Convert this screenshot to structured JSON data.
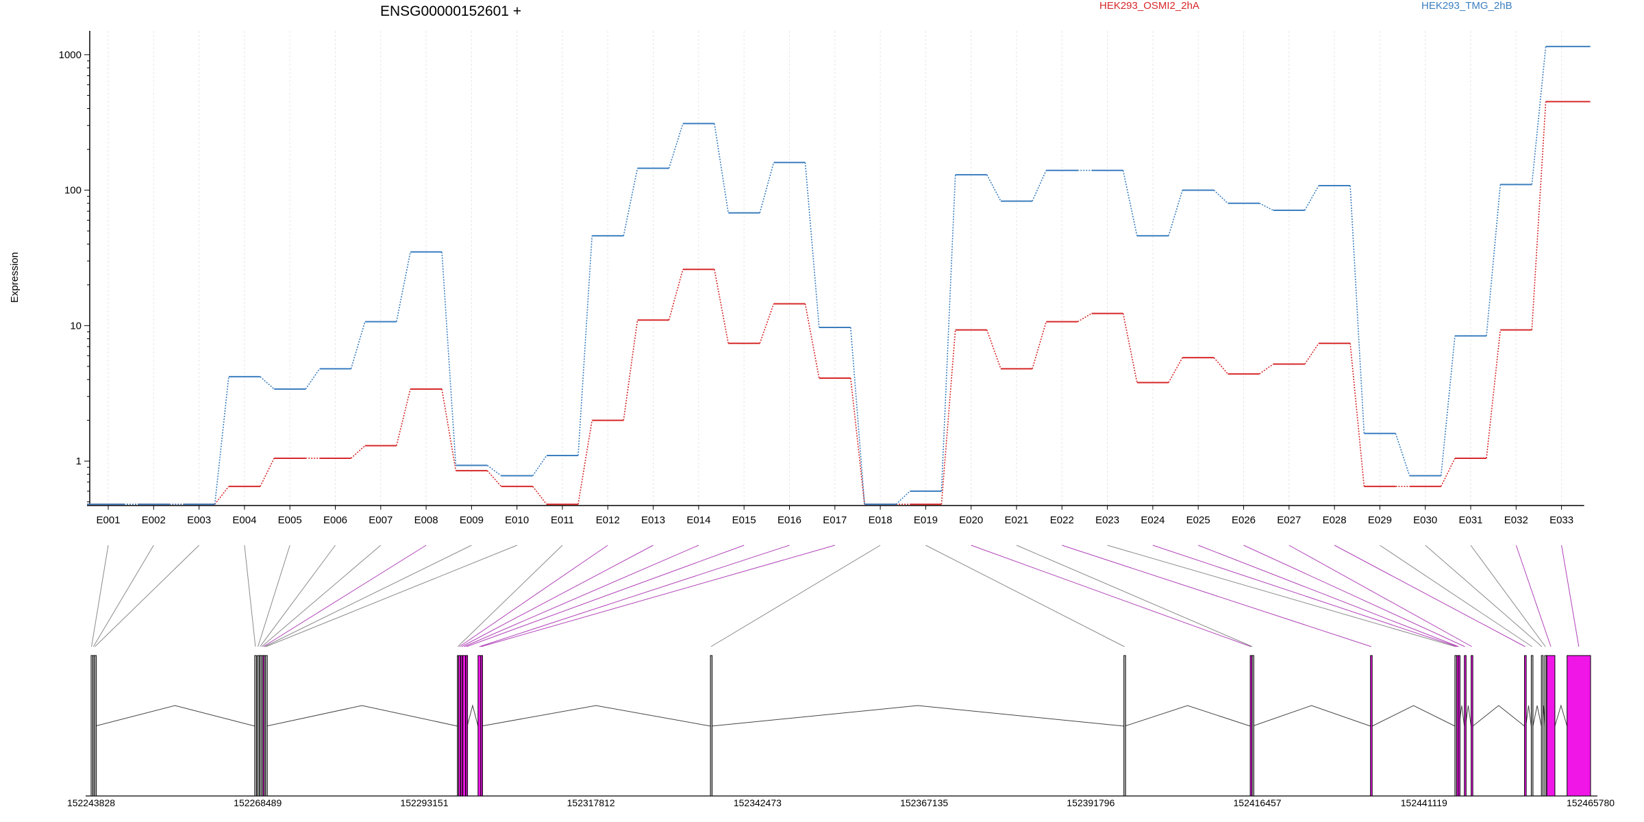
{
  "chart_data": {
    "type": "line",
    "title": "ENSG00000152601 +",
    "ylabel": "Expression",
    "yscale": "log",
    "yticks": [
      1,
      10,
      100,
      1000
    ],
    "yrange": [
      0.47,
      1500
    ],
    "legend_placement": "top",
    "categories": [
      "E001",
      "E002",
      "E003",
      "E004",
      "E005",
      "E006",
      "E007",
      "E008",
      "E009",
      "E010",
      "E011",
      "E012",
      "E013",
      "E014",
      "E015",
      "E016",
      "E017",
      "E018",
      "E019",
      "E020",
      "E021",
      "E022",
      "E023",
      "E024",
      "E025",
      "E026",
      "E027",
      "E028",
      "E029",
      "E030",
      "E031",
      "E032",
      "E033"
    ],
    "series": [
      {
        "name": "HEK293_OSMI2_2hA",
        "color": "#d62728",
        "values": [
          0.48,
          0.48,
          0.48,
          0.65,
          1.05,
          1.05,
          1.3,
          3.4,
          0.85,
          0.65,
          0.48,
          2.0,
          11,
          26,
          7.4,
          14.5,
          4.1,
          0.48,
          0.48,
          9.3,
          4.8,
          10.7,
          12.3,
          3.8,
          5.8,
          4.4,
          5.2,
          7.4,
          0.65,
          0.65,
          1.05,
          9.3,
          450
        ]
      },
      {
        "name": "HEK293_TMG_2hB",
        "color": "#3a7ebf",
        "values": [
          0.48,
          0.48,
          0.48,
          4.2,
          3.4,
          4.8,
          10.7,
          35,
          0.93,
          0.78,
          1.1,
          46,
          145,
          310,
          68,
          160,
          9.7,
          0.48,
          0.6,
          130,
          83,
          140,
          140,
          46,
          100,
          80,
          71,
          108,
          1.6,
          0.78,
          8.4,
          110,
          1150
        ]
      }
    ],
    "exon_usage": [
      "none",
      "none",
      "none",
      "none",
      "none",
      "none",
      "none",
      "highlight",
      "none",
      "none",
      "none",
      "highlight",
      "highlight",
      "highlight",
      "highlight",
      "highlight",
      "highlight",
      "none",
      "none",
      "highlight",
      "none",
      "highlight",
      "none",
      "highlight",
      "highlight",
      "highlight",
      "highlight",
      "highlight",
      "none",
      "none",
      "none",
      "highlight",
      "highlight"
    ],
    "gene_model": {
      "coord_ticks": [
        "152243828",
        "152268489",
        "152293151",
        "152317812",
        "152342473",
        "152367135",
        "152391796",
        "152416457",
        "152441119",
        "152465780"
      ],
      "exons": [
        {
          "id": "E001",
          "start": 152243828,
          "end": 152243950
        },
        {
          "id": "E002",
          "start": 152244100,
          "end": 152244230
        },
        {
          "id": "E003",
          "start": 152244350,
          "end": 152244430
        },
        {
          "id": "E004",
          "start": 152268050,
          "end": 152268250
        },
        {
          "id": "E005",
          "start": 152268450,
          "end": 152268600
        },
        {
          "id": "E006",
          "start": 152268750,
          "end": 152268900
        },
        {
          "id": "E007",
          "start": 152269000,
          "end": 152269150
        },
        {
          "id": "E008",
          "start": 152269250,
          "end": 152269400
        },
        {
          "id": "E009",
          "start": 152269450,
          "end": 152269580
        },
        {
          "id": "E010",
          "start": 152269650,
          "end": 152269800
        },
        {
          "id": "E011",
          "start": 152298050,
          "end": 152298150
        },
        {
          "id": "E012",
          "start": 152298200,
          "end": 152298500
        },
        {
          "id": "E013",
          "start": 152298550,
          "end": 152298800
        },
        {
          "id": "E014",
          "start": 152298850,
          "end": 152299250
        },
        {
          "id": "E015",
          "start": 152299300,
          "end": 152299500
        },
        {
          "id": "E016",
          "start": 152301100,
          "end": 152301500
        },
        {
          "id": "E017",
          "start": 152301520,
          "end": 152301600
        },
        {
          "id": "E018",
          "start": 152335500,
          "end": 152335650
        },
        {
          "id": "E019",
          "start": 152396700,
          "end": 152396850
        },
        {
          "id": "E020",
          "start": 152415400,
          "end": 152415650
        },
        {
          "id": "E021",
          "start": 152415680,
          "end": 152415750
        },
        {
          "id": "E022",
          "start": 152433200,
          "end": 152433450
        },
        {
          "id": "E023",
          "start": 152445700,
          "end": 152445900
        },
        {
          "id": "E024",
          "start": 152445950,
          "end": 152446150
        },
        {
          "id": "E025",
          "start": 152446200,
          "end": 152446300
        },
        {
          "id": "E026",
          "start": 152447100,
          "end": 152447250
        },
        {
          "id": "E027",
          "start": 152448100,
          "end": 152448350
        },
        {
          "id": "E028",
          "start": 152456000,
          "end": 152456200
        },
        {
          "id": "E029",
          "start": 152457000,
          "end": 152457250
        },
        {
          "id": "E030",
          "start": 152458500,
          "end": 152458650
        },
        {
          "id": "E031",
          "start": 152459000,
          "end": 152459200
        },
        {
          "id": "E032",
          "start": 152459300,
          "end": 152460500
        },
        {
          "id": "E033",
          "start": 152462300,
          "end": 152465780
        }
      ]
    }
  }
}
